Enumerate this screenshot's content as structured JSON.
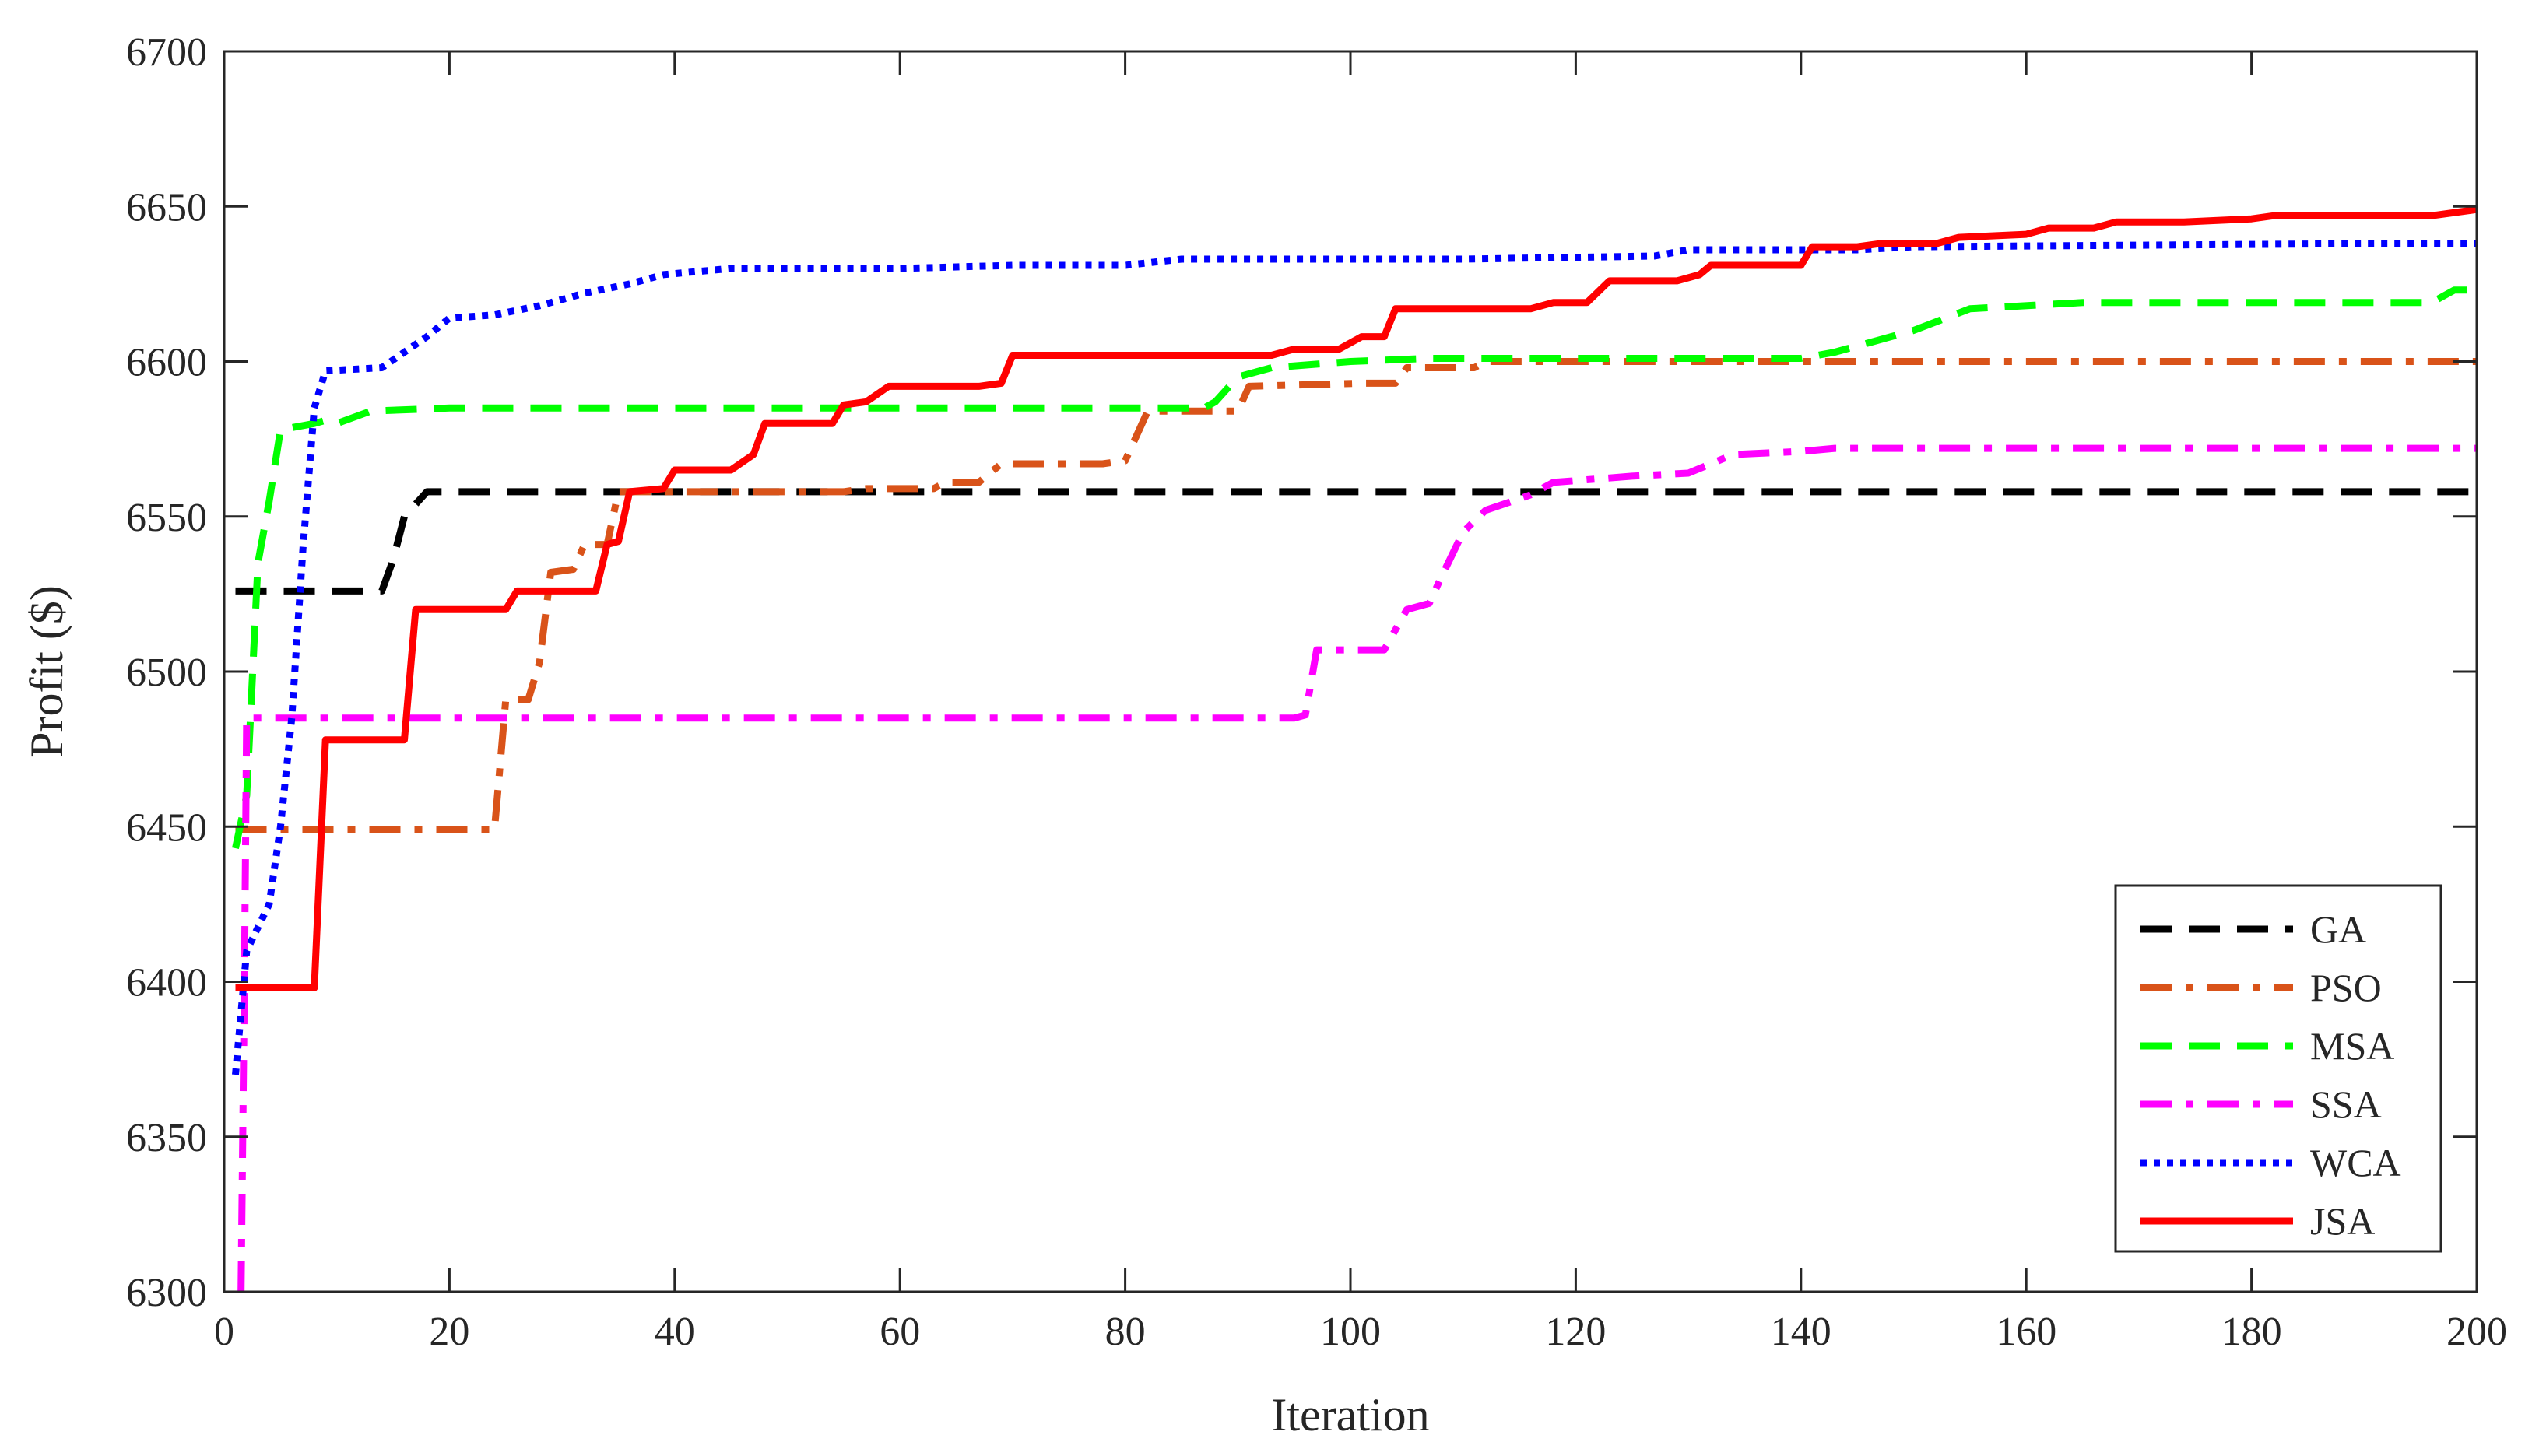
{
  "chart_data": {
    "type": "line",
    "title": "",
    "xlabel": "Iteration",
    "ylabel": "Profit ($)",
    "xlim": [
      0,
      200
    ],
    "ylim": [
      6300,
      6700
    ],
    "xticks": [
      0,
      20,
      40,
      60,
      80,
      100,
      120,
      140,
      160,
      180,
      200
    ],
    "yticks": [
      6300,
      6350,
      6400,
      6450,
      6500,
      6550,
      6600,
      6650,
      6700
    ],
    "grid": false,
    "legend_position": "bottom-right",
    "series": [
      {
        "name": "GA",
        "color": "#000000",
        "style": "dashed",
        "points": [
          [
            1,
            6526
          ],
          [
            14,
            6526
          ],
          [
            15,
            6536
          ],
          [
            16,
            6550
          ],
          [
            18,
            6558
          ],
          [
            30,
            6558
          ],
          [
            60,
            6558
          ],
          [
            100,
            6558
          ],
          [
            140,
            6558
          ],
          [
            200,
            6558
          ]
        ]
      },
      {
        "name": "PSO",
        "color": "#D95319",
        "style": "dashdot",
        "points": [
          [
            1,
            6449
          ],
          [
            24,
            6449
          ],
          [
            25,
            6491
          ],
          [
            27,
            6491
          ],
          [
            28,
            6503
          ],
          [
            29,
            6532
          ],
          [
            31,
            6533
          ],
          [
            32,
            6541
          ],
          [
            34,
            6541
          ],
          [
            35,
            6558
          ],
          [
            55,
            6558
          ],
          [
            57,
            6559
          ],
          [
            63,
            6559
          ],
          [
            64,
            6561
          ],
          [
            67,
            6561
          ],
          [
            69,
            6567
          ],
          [
            78,
            6567
          ],
          [
            80,
            6568
          ],
          [
            82,
            6584
          ],
          [
            87,
            6584
          ],
          [
            90,
            6584
          ],
          [
            91,
            6592
          ],
          [
            101,
            6593
          ],
          [
            104,
            6593
          ],
          [
            105,
            6598
          ],
          [
            111,
            6598
          ],
          [
            112,
            6600
          ],
          [
            140,
            6600
          ],
          [
            200,
            6600
          ]
        ]
      },
      {
        "name": "MSA",
        "color": "#00FF00",
        "style": "dashed",
        "points": [
          [
            1,
            6443
          ],
          [
            2,
            6460
          ],
          [
            3,
            6535
          ],
          [
            4,
            6555
          ],
          [
            5,
            6578
          ],
          [
            8,
            6580
          ],
          [
            9,
            6581
          ],
          [
            10,
            6580
          ],
          [
            13,
            6584
          ],
          [
            20,
            6585
          ],
          [
            60,
            6585
          ],
          [
            87,
            6585
          ],
          [
            88,
            6587
          ],
          [
            90,
            6595
          ],
          [
            93,
            6598
          ],
          [
            100,
            6600
          ],
          [
            107,
            6601
          ],
          [
            140,
            6601
          ],
          [
            143,
            6603
          ],
          [
            146,
            6606
          ],
          [
            150,
            6610
          ],
          [
            155,
            6617
          ],
          [
            165,
            6619
          ],
          [
            196,
            6619
          ],
          [
            198,
            6623
          ],
          [
            200,
            6623
          ]
        ]
      },
      {
        "name": "SSA",
        "color": "#FF00FF",
        "style": "dashdot",
        "points": [
          [
            1.5,
            6300
          ],
          [
            1.8,
            6400
          ],
          [
            2,
            6485
          ],
          [
            20,
            6485
          ],
          [
            60,
            6485
          ],
          [
            95,
            6485
          ],
          [
            96,
            6486
          ],
          [
            97,
            6507
          ],
          [
            103,
            6507
          ],
          [
            105,
            6520
          ],
          [
            107,
            6522
          ],
          [
            108,
            6530
          ],
          [
            110,
            6545
          ],
          [
            112,
            6552
          ],
          [
            116,
            6557
          ],
          [
            118,
            6561
          ],
          [
            125,
            6563
          ],
          [
            130,
            6564
          ],
          [
            134,
            6570
          ],
          [
            140,
            6571
          ],
          [
            143,
            6572
          ],
          [
            160,
            6572
          ],
          [
            200,
            6572
          ]
        ]
      },
      {
        "name": "WCA",
        "color": "#0000FF",
        "style": "dotted",
        "points": [
          [
            1,
            6370
          ],
          [
            2,
            6410
          ],
          [
            4,
            6425
          ],
          [
            5,
            6450
          ],
          [
            6,
            6485
          ],
          [
            7,
            6540
          ],
          [
            8,
            6585
          ],
          [
            9,
            6597
          ],
          [
            14,
            6598
          ],
          [
            16,
            6603
          ],
          [
            18,
            6608
          ],
          [
            20,
            6614
          ],
          [
            24,
            6615
          ],
          [
            28,
            6618
          ],
          [
            32,
            6622
          ],
          [
            36,
            6625
          ],
          [
            39,
            6628
          ],
          [
            45,
            6630
          ],
          [
            60,
            6630
          ],
          [
            70,
            6631
          ],
          [
            80,
            6631
          ],
          [
            85,
            6633
          ],
          [
            100,
            6633
          ],
          [
            110,
            6633
          ],
          [
            127,
            6634
          ],
          [
            130,
            6636
          ],
          [
            145,
            6636
          ],
          [
            150,
            6637
          ],
          [
            190,
            6638
          ],
          [
            200,
            6638
          ]
        ]
      },
      {
        "name": "JSA",
        "color": "#FF0000",
        "style": "solid",
        "points": [
          [
            1,
            6398
          ],
          [
            8,
            6398
          ],
          [
            9,
            6478
          ],
          [
            16,
            6478
          ],
          [
            17,
            6520
          ],
          [
            25,
            6520
          ],
          [
            26,
            6526
          ],
          [
            33,
            6526
          ],
          [
            34,
            6541
          ],
          [
            35,
            6542
          ],
          [
            36,
            6558
          ],
          [
            39,
            6559
          ],
          [
            40,
            6565
          ],
          [
            45,
            6565
          ],
          [
            47,
            6570
          ],
          [
            48,
            6580
          ],
          [
            54,
            6580
          ],
          [
            55,
            6586
          ],
          [
            57,
            6587
          ],
          [
            59,
            6592
          ],
          [
            63,
            6592
          ],
          [
            67,
            6592
          ],
          [
            69,
            6593
          ],
          [
            70,
            6602
          ],
          [
            87,
            6602
          ],
          [
            93,
            6602
          ],
          [
            95,
            6604
          ],
          [
            99,
            6604
          ],
          [
            101,
            6608
          ],
          [
            103,
            6608
          ],
          [
            104,
            6617
          ],
          [
            116,
            6617
          ],
          [
            118,
            6619
          ],
          [
            121,
            6619
          ],
          [
            123,
            6626
          ],
          [
            129,
            6626
          ],
          [
            131,
            6628
          ],
          [
            132,
            6631
          ],
          [
            140,
            6631
          ],
          [
            141,
            6637
          ],
          [
            145,
            6637
          ],
          [
            147,
            6638
          ],
          [
            152,
            6638
          ],
          [
            154,
            6640
          ],
          [
            160,
            6641
          ],
          [
            162,
            6643
          ],
          [
            166,
            6643
          ],
          [
            168,
            6645
          ],
          [
            174,
            6645
          ],
          [
            180,
            6646
          ],
          [
            182,
            6647
          ],
          [
            196,
            6647
          ],
          [
            200,
            6649
          ]
        ]
      }
    ]
  }
}
